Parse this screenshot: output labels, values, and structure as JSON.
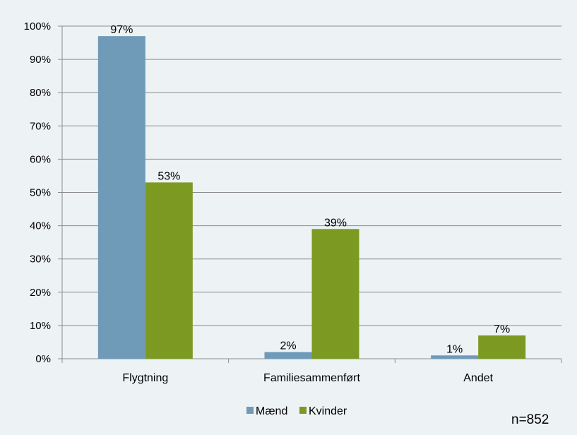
{
  "chart_data": {
    "type": "bar",
    "categories": [
      "Flygtning",
      "Familiesammenført",
      "Andet"
    ],
    "series": [
      {
        "name": "Mænd",
        "values": [
          97,
          2,
          1
        ],
        "labels": [
          "97%",
          "2%",
          "1%"
        ],
        "color": "#6f9ab8"
      },
      {
        "name": "Kvinder",
        "values": [
          53,
          39,
          7
        ],
        "labels": [
          "53%",
          "39%",
          "7%"
        ],
        "color": "#7c9a22"
      }
    ],
    "ylim": [
      0,
      100
    ],
    "yticks": [
      "0%",
      "10%",
      "20%",
      "30%",
      "40%",
      "50%",
      "60%",
      "70%",
      "80%",
      "90%",
      "100%"
    ],
    "grid": true,
    "legend": "bottom",
    "gridColor": "#8c8c8c",
    "note": "n=852"
  }
}
